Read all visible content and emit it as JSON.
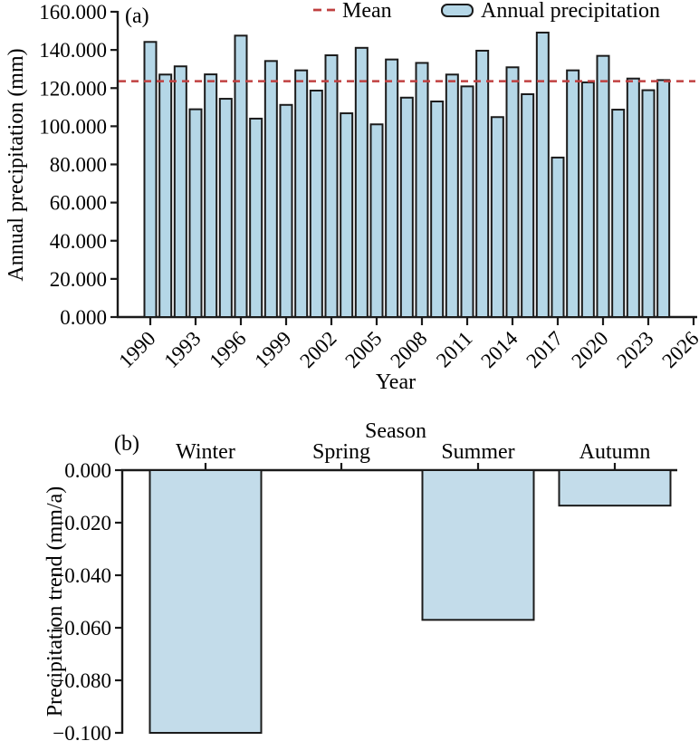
{
  "figure": {
    "panel_a_tag": "(a)",
    "panel_b_tag": "(b)"
  },
  "colors": {
    "bar_fill_a": "#b5d7e7",
    "bar_fill_b": "#c3dcea",
    "bar_stroke": "#1b1b1b",
    "axis": "#1a1a1a",
    "mean_line": "#c04040",
    "background": "#ffffff"
  },
  "chart_data": [
    {
      "type": "bar",
      "panel": "a",
      "title": "",
      "xlabel": "Year",
      "ylabel": "Annual precipitation (mm)",
      "ylim": [
        0,
        160
      ],
      "grid": false,
      "legend_position": "top",
      "legend": [
        {
          "label": "Mean",
          "swatch": "dashed-red-line"
        },
        {
          "label": "Annual precipitation",
          "swatch": "blue-filled-box"
        }
      ],
      "mean_value": 123.6,
      "y_tick_values": [
        0,
        20,
        40,
        60,
        80,
        100,
        120,
        140,
        160
      ],
      "y_tick_labels": [
        "0.000",
        "20.000",
        "40.000",
        "60.000",
        "80.000",
        "100.000",
        "120.000",
        "140.000",
        "160.000"
      ],
      "x_tick_values": [
        1990,
        1993,
        1996,
        1999,
        2002,
        2005,
        2008,
        2011,
        2014,
        2017,
        2020,
        2023,
        2026
      ],
      "x_tick_labels": [
        "1990",
        "1993",
        "1996",
        "1999",
        "2002",
        "2005",
        "2008",
        "2011",
        "2014",
        "2017",
        "2020",
        "2023",
        "2026"
      ],
      "x": [
        1990,
        1991,
        1992,
        1993,
        1994,
        1995,
        1996,
        1997,
        1998,
        1999,
        2000,
        2001,
        2002,
        2003,
        2004,
        2005,
        2006,
        2007,
        2008,
        2009,
        2010,
        2011,
        2012,
        2013,
        2014,
        2015,
        2016,
        2017,
        2018,
        2019,
        2020,
        2021,
        2022,
        2023,
        2024
      ],
      "values": [
        144.2,
        127.1,
        131.4,
        108.9,
        127.2,
        114.4,
        147.5,
        104.0,
        134.2,
        111.2,
        129.3,
        118.7,
        137.2,
        106.8,
        141.1,
        101.0,
        135.0,
        115.0,
        133.2,
        113.0,
        127.1,
        120.9,
        139.6,
        104.8,
        130.9,
        116.8,
        149.1,
        83.6,
        129.3,
        123.0,
        136.9,
        108.7,
        125.0,
        118.9,
        124.2
      ]
    },
    {
      "type": "bar",
      "panel": "b",
      "title": "",
      "xlabel": "Season",
      "ylabel": "Precipitation trend (mm/a)",
      "ylim": [
        -0.1,
        0
      ],
      "grid": false,
      "categories": [
        "Winter",
        "Spring",
        "Summer",
        "Autumn"
      ],
      "values": [
        -0.1,
        0.0,
        -0.057,
        -0.0135
      ],
      "y_tick_values": [
        0,
        -0.02,
        -0.04,
        -0.06,
        -0.08,
        -0.1
      ],
      "y_tick_labels": [
        "0.000",
        "−0.020",
        "−0.040",
        "−0.060",
        "−0.080",
        "−0.100"
      ]
    }
  ]
}
